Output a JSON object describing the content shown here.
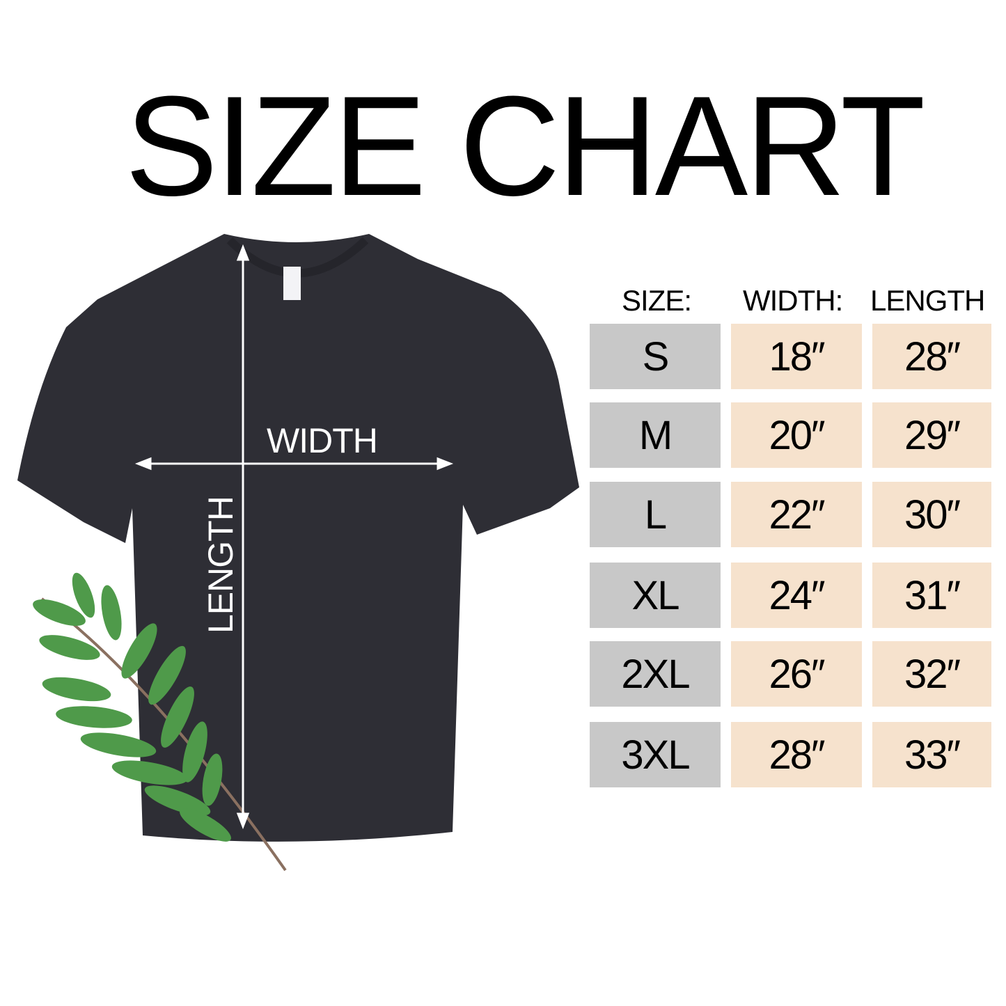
{
  "title": "SIZE CHART",
  "shirt": {
    "width_label": "WIDTH",
    "length_label": "LENGTH",
    "shirt_color": "#2e2e35"
  },
  "table": {
    "headers": [
      "SIZE:",
      "WIDTH:",
      "LENGTH"
    ],
    "rows": [
      {
        "size": "S",
        "width": "18″",
        "length": "28″"
      },
      {
        "size": "M",
        "width": "20″",
        "length": "29″"
      },
      {
        "size": "L",
        "width": "22″",
        "length": "30″"
      },
      {
        "size": "XL",
        "width": "24″",
        "length": "31″"
      },
      {
        "size": "2XL",
        "width": "26″",
        "length": "32″"
      },
      {
        "size": "3XL",
        "width": "28″",
        "length": "33″"
      }
    ],
    "size_cell_color": "#c8c8c8",
    "value_cell_color": "#f6e2cd"
  }
}
